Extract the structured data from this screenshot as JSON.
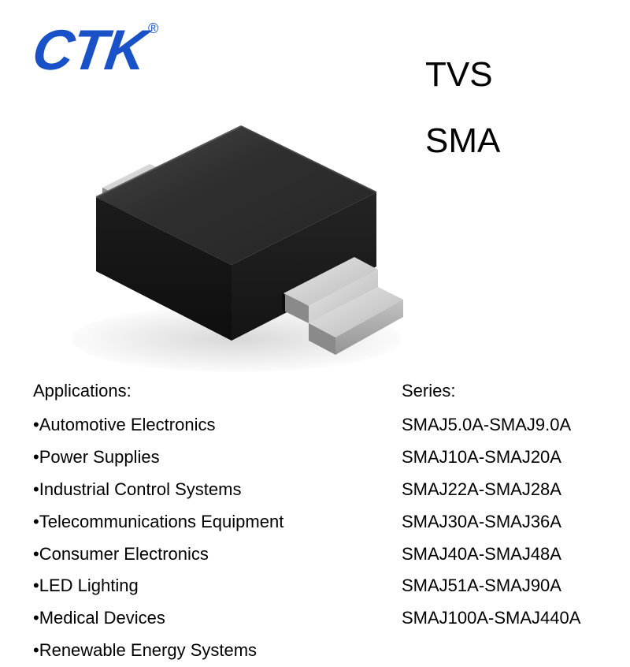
{
  "logo": {
    "text": "CTK",
    "reg_symbol": "®",
    "color": "#1952c8"
  },
  "product_type": {
    "line1": "TVS",
    "line2": "SMA",
    "fontsize": 44,
    "color": "#000000"
  },
  "applications": {
    "header": "Applications:",
    "items": [
      "Automotive Electronics",
      "Power Supplies",
      "Industrial Control Systems",
      "Telecommunications Equipment",
      "Consumer Electronics",
      "LED Lighting",
      "Medical Devices",
      "Renewable Energy Systems"
    ],
    "bullet": "•",
    "fontsize": 22,
    "color": "#000000"
  },
  "series": {
    "header": "Series:",
    "items": [
      "SMAJ5.0A-SMAJ9.0A",
      "SMAJ10A-SMAJ20A",
      "SMAJ22A-SMAJ28A",
      "SMAJ30A-SMAJ36A",
      "SMAJ40A-SMAJ48A",
      "SMAJ51A-SMAJ90A",
      "SMAJ100A-SMAJ440A"
    ],
    "fontsize": 22,
    "color": "#000000"
  },
  "component_svg": {
    "body_top_color": "#2a2a2a",
    "body_top_highlight": "#3d3d3d",
    "body_left_color": "#161616",
    "body_right_color": "#1d1d1d",
    "lead_top_color": "#c8c8c8",
    "lead_front_color": "#a8a8a8",
    "lead_side_color": "#8a8a8a",
    "shadow_color": "#e2e2e2"
  }
}
